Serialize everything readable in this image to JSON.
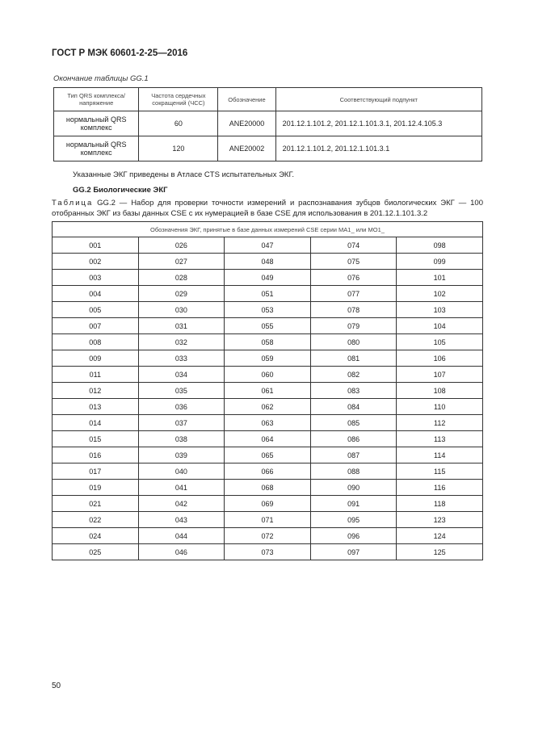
{
  "header": {
    "title": "ГОСТ Р МЭК 60601-2-25—2016"
  },
  "table1": {
    "caption": "Окончание таблицы GG.1",
    "headers": [
      "Тип QRS комплекса/ напряжение",
      "Частота сердечных сокращений (ЧСС)",
      "Обозначение",
      "Соответствующий подпункт"
    ],
    "rows": [
      [
        "нормальный QRS комплекс",
        "60",
        "ANE20000",
        "201.12.1.101.2, 201.12.1.101.3.1, 201.12.4.105.3"
      ],
      [
        "нормальный QRS комплекс",
        "120",
        "ANE20002",
        "201.12.1.101.2, 201.12.1.101.3.1"
      ]
    ]
  },
  "note": "Указанные ЭКГ приведены в Атласе CTS испытательных ЭКГ.",
  "section": "GG.2 Биологические ЭКГ",
  "table2": {
    "caption_label": "Таблица",
    "caption": " GG.2 — Набор для проверки точности измерений и распознавания зубцов биологических ЭКГ — 100 отобранных ЭКГ из базы данных CSE с их нумерацией в базе CSE для использования в 201.12.1.101.3.2",
    "header": "Обозначения ЭКГ, принятые в базе данных измерений CSE серии MA1_ или MO1_",
    "rows": [
      [
        "001",
        "026",
        "047",
        "074",
        "098"
      ],
      [
        "002",
        "027",
        "048",
        "075",
        "099"
      ],
      [
        "003",
        "028",
        "049",
        "076",
        "101"
      ],
      [
        "004",
        "029",
        "051",
        "077",
        "102"
      ],
      [
        "005",
        "030",
        "053",
        "078",
        "103"
      ],
      [
        "007",
        "031",
        "055",
        "079",
        "104"
      ],
      [
        "008",
        "032",
        "058",
        "080",
        "105"
      ],
      [
        "009",
        "033",
        "059",
        "081",
        "106"
      ],
      [
        "011",
        "034",
        "060",
        "082",
        "107"
      ],
      [
        "012",
        "035",
        "061",
        "083",
        "108"
      ],
      [
        "013",
        "036",
        "062",
        "084",
        "110"
      ],
      [
        "014",
        "037",
        "063",
        "085",
        "112"
      ],
      [
        "015",
        "038",
        "064",
        "086",
        "113"
      ],
      [
        "016",
        "039",
        "065",
        "087",
        "114"
      ],
      [
        "017",
        "040",
        "066",
        "088",
        "115"
      ],
      [
        "019",
        "041",
        "068",
        "090",
        "116"
      ],
      [
        "021",
        "042",
        "069",
        "091",
        "118"
      ],
      [
        "022",
        "043",
        "071",
        "095",
        "123"
      ],
      [
        "024",
        "044",
        "072",
        "096",
        "124"
      ],
      [
        "025",
        "046",
        "073",
        "097",
        "125"
      ]
    ]
  },
  "footer": {
    "page_number": "50"
  }
}
